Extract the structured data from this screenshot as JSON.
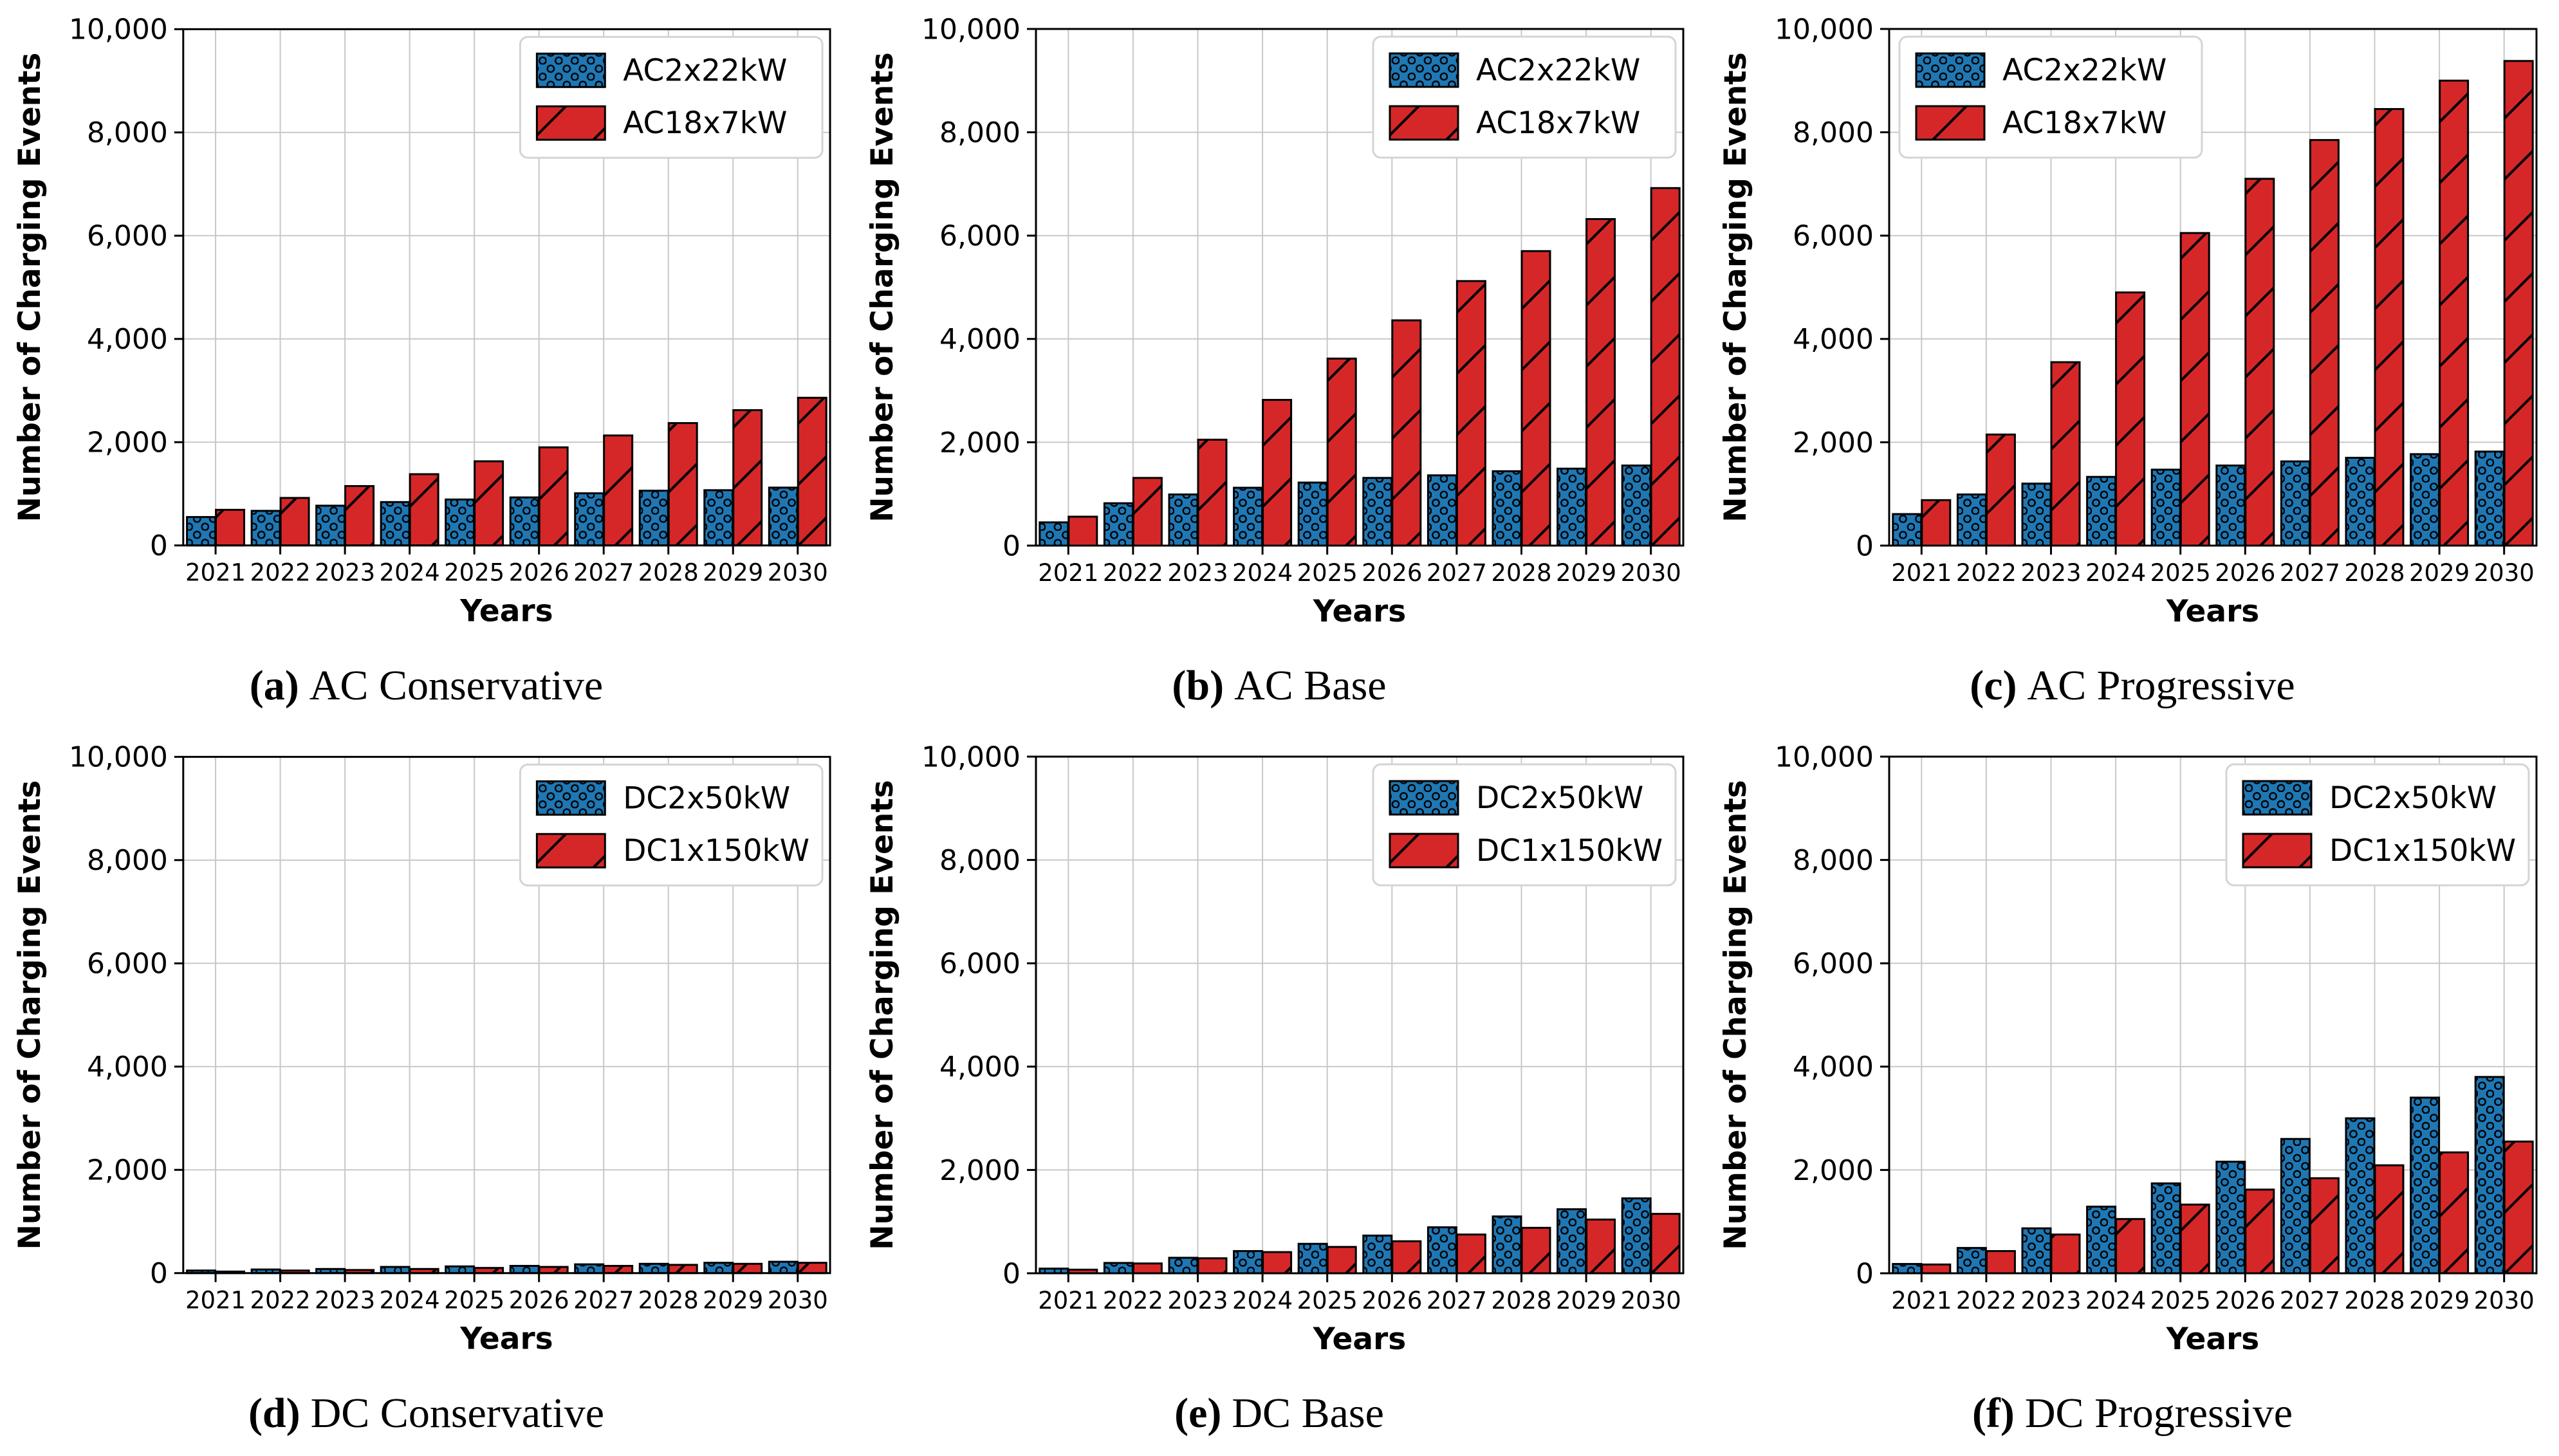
{
  "figure": {
    "ylabel": "Number of Charging Events",
    "xlabel": "Years",
    "ytick_labels": [
      "0",
      "2,000",
      "4,000",
      "6,000",
      "8,000",
      "10,000"
    ],
    "colors": {
      "series_blue": "#1f77b4",
      "series_red": "#d62728",
      "bar_edge": "#000000",
      "gridline": "#c8c8c8",
      "legend_border": "#d4d4d4",
      "background": "#ffffff",
      "text": "#000000"
    }
  },
  "chart_data": [
    {
      "id": "a",
      "type": "bar",
      "caption_label": "(a)",
      "caption_text": "AC Conservative",
      "xlabel": "Years",
      "ylabel": "Number of Charging Events",
      "ylim": [
        0,
        10000
      ],
      "yticks": [
        0,
        2000,
        4000,
        6000,
        8000,
        10000
      ],
      "ytick_labels": [
        "0",
        "2,000",
        "4,000",
        "6,000",
        "8,000",
        "10,000"
      ],
      "grid": true,
      "legend_position": "top-right",
      "categories": [
        "2021",
        "2022",
        "2023",
        "2024",
        "2025",
        "2026",
        "2027",
        "2028",
        "2029",
        "2030"
      ],
      "series": [
        {
          "name": "AC2x22kW",
          "color": "#1f77b4",
          "hatch": "dots",
          "values": [
            550,
            670,
            770,
            840,
            890,
            930,
            1010,
            1060,
            1070,
            1120
          ]
        },
        {
          "name": "AC18x7kW",
          "color": "#d62728",
          "hatch": "diag",
          "values": [
            690,
            920,
            1150,
            1380,
            1630,
            1900,
            2130,
            2370,
            2620,
            2860
          ]
        }
      ]
    },
    {
      "id": "b",
      "type": "bar",
      "caption_label": "(b)",
      "caption_text": "AC Base",
      "xlabel": "Years",
      "ylabel": "Number of Charging Events",
      "ylim": [
        0,
        10000
      ],
      "yticks": [
        0,
        2000,
        4000,
        6000,
        8000,
        10000
      ],
      "ytick_labels": [
        "0",
        "2,000",
        "4,000",
        "6,000",
        "8,000",
        "10,000"
      ],
      "grid": true,
      "legend_position": "top-right",
      "categories": [
        "2021",
        "2022",
        "2023",
        "2024",
        "2025",
        "2026",
        "2027",
        "2028",
        "2029",
        "2030"
      ],
      "series": [
        {
          "name": "AC2x22kW",
          "color": "#1f77b4",
          "hatch": "dots",
          "values": [
            450,
            820,
            990,
            1120,
            1220,
            1310,
            1360,
            1440,
            1490,
            1550
          ]
        },
        {
          "name": "AC18x7kW",
          "color": "#d62728",
          "hatch": "diag",
          "values": [
            560,
            1310,
            2050,
            2820,
            3620,
            4360,
            5120,
            5700,
            6320,
            6920
          ]
        }
      ]
    },
    {
      "id": "c",
      "type": "bar",
      "caption_label": "(c)",
      "caption_text": "AC Progressive",
      "xlabel": "Years",
      "ylabel": "Number of Charging Events",
      "ylim": [
        0,
        10000
      ],
      "yticks": [
        0,
        2000,
        4000,
        6000,
        8000,
        10000
      ],
      "ytick_labels": [
        "0",
        "2,000",
        "4,000",
        "6,000",
        "8,000",
        "10,000"
      ],
      "grid": true,
      "legend_position": "top-left",
      "categories": [
        "2021",
        "2022",
        "2023",
        "2024",
        "2025",
        "2026",
        "2027",
        "2028",
        "2029",
        "2030"
      ],
      "series": [
        {
          "name": "AC2x22kW",
          "color": "#1f77b4",
          "hatch": "dots",
          "values": [
            610,
            990,
            1200,
            1330,
            1470,
            1550,
            1630,
            1700,
            1770,
            1820
          ]
        },
        {
          "name": "AC18x7kW",
          "color": "#d62728",
          "hatch": "diag",
          "values": [
            880,
            2150,
            3550,
            4900,
            6050,
            7100,
            7850,
            8450,
            9000,
            9380
          ]
        }
      ]
    },
    {
      "id": "d",
      "type": "bar",
      "caption_label": "(d)",
      "caption_text": "DC Conservative",
      "xlabel": "Years",
      "ylabel": "Number of Charging Events",
      "ylim": [
        0,
        10000
      ],
      "yticks": [
        0,
        2000,
        4000,
        6000,
        8000,
        10000
      ],
      "ytick_labels": [
        "0",
        "2,000",
        "4,000",
        "6,000",
        "8,000",
        "10,000"
      ],
      "grid": true,
      "legend_position": "top-right",
      "categories": [
        "2021",
        "2022",
        "2023",
        "2024",
        "2025",
        "2026",
        "2027",
        "2028",
        "2029",
        "2030"
      ],
      "series": [
        {
          "name": "DC2x50kW",
          "color": "#1f77b4",
          "hatch": "dots",
          "values": [
            50,
            70,
            80,
            120,
            130,
            140,
            170,
            180,
            200,
            220
          ]
        },
        {
          "name": "DC1x150kW",
          "color": "#d62728",
          "hatch": "diag",
          "values": [
            30,
            50,
            60,
            80,
            100,
            120,
            140,
            160,
            180,
            200
          ]
        }
      ]
    },
    {
      "id": "e",
      "type": "bar",
      "caption_label": "(e)",
      "caption_text": "DC Base",
      "xlabel": "Years",
      "ylabel": "Number of Charging Events",
      "ylim": [
        0,
        10000
      ],
      "yticks": [
        0,
        2000,
        4000,
        6000,
        8000,
        10000
      ],
      "ytick_labels": [
        "0",
        "2,000",
        "4,000",
        "6,000",
        "8,000",
        "10,000"
      ],
      "grid": true,
      "legend_position": "top-right",
      "categories": [
        "2021",
        "2022",
        "2023",
        "2024",
        "2025",
        "2026",
        "2027",
        "2028",
        "2029",
        "2030"
      ],
      "series": [
        {
          "name": "DC2x50kW",
          "color": "#1f77b4",
          "hatch": "dots",
          "values": [
            90,
            200,
            300,
            430,
            570,
            730,
            890,
            1100,
            1240,
            1450
          ]
        },
        {
          "name": "DC1x150kW",
          "color": "#d62728",
          "hatch": "diag",
          "values": [
            70,
            190,
            290,
            410,
            510,
            620,
            750,
            880,
            1040,
            1150
          ]
        }
      ]
    },
    {
      "id": "f",
      "type": "bar",
      "caption_label": "(f)",
      "caption_text": "DC Progressive",
      "xlabel": "Years",
      "ylabel": "Number of Charging Events",
      "ylim": [
        0,
        10000
      ],
      "yticks": [
        0,
        2000,
        4000,
        6000,
        8000,
        10000
      ],
      "ytick_labels": [
        "0",
        "2,000",
        "4,000",
        "6,000",
        "8,000",
        "10,000"
      ],
      "grid": true,
      "legend_position": "top-right",
      "categories": [
        "2021",
        "2022",
        "2023",
        "2024",
        "2025",
        "2026",
        "2027",
        "2028",
        "2029",
        "2030"
      ],
      "series": [
        {
          "name": "DC2x50kW",
          "color": "#1f77b4",
          "hatch": "dots",
          "values": [
            180,
            490,
            870,
            1290,
            1740,
            2160,
            2600,
            3000,
            3400,
            3800
          ]
        },
        {
          "name": "DC1x150kW",
          "color": "#d62728",
          "hatch": "diag",
          "values": [
            170,
            430,
            750,
            1050,
            1330,
            1620,
            1840,
            2090,
            2340,
            2550
          ]
        }
      ]
    }
  ]
}
